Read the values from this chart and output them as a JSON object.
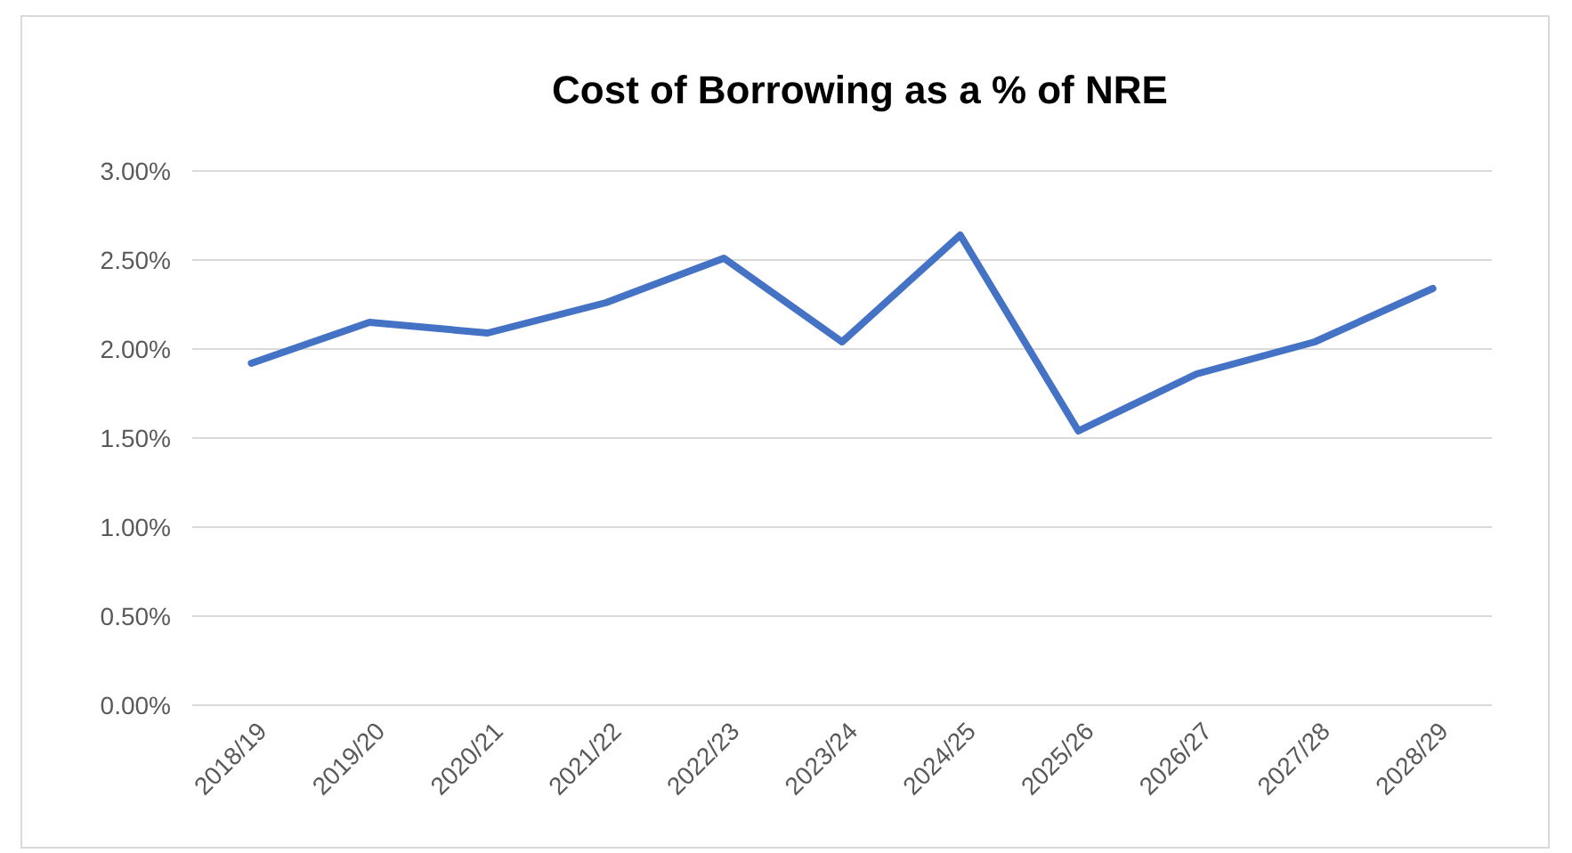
{
  "chart_data": {
    "type": "line",
    "title": "Cost of Borrowing as a % of NRE",
    "categories": [
      "2018/19",
      "2019/20",
      "2020/21",
      "2021/22",
      "2022/23",
      "2023/24",
      "2024/25",
      "2025/26",
      "2026/27",
      "2027/28",
      "2028/29"
    ],
    "series": [
      {
        "color": "#4472c4",
        "values": [
          1.92,
          2.15,
          2.09,
          2.26,
          2.51,
          2.04,
          2.64,
          1.54,
          1.86,
          2.04,
          2.34
        ]
      }
    ],
    "ylim": [
      0,
      3
    ],
    "yticks": [
      {
        "value": 0,
        "label": "0.00%"
      },
      {
        "value": 0.5,
        "label": "0.50%"
      },
      {
        "value": 1,
        "label": "1.00%"
      },
      {
        "value": 1.5,
        "label": "1.50%"
      },
      {
        "value": 2,
        "label": "2.00%"
      },
      {
        "value": 2.5,
        "label": "2.50%"
      },
      {
        "value": 3,
        "label": "3.00%"
      }
    ],
    "grid": "y",
    "marker": "none",
    "line_style": "solid"
  }
}
